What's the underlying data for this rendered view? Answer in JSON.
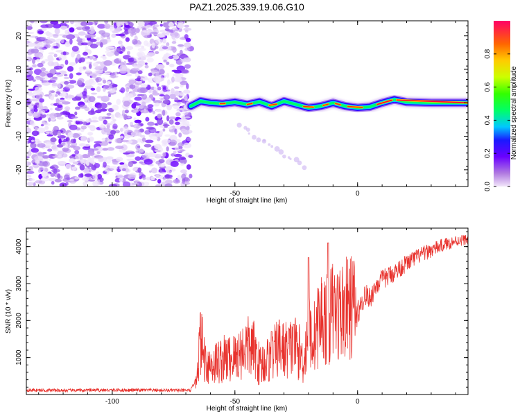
{
  "title": "PAZ1.2025.339.19.06.G10",
  "chart_data": [
    {
      "type": "heatmap",
      "name": "spectrogram",
      "xlabel": "Height of straight line (km)",
      "ylabel": "Frequency (Hz)",
      "xlim": [
        -135,
        45
      ],
      "ylim": [
        -25,
        24.5
      ],
      "xticks": [
        -100,
        -50,
        0
      ],
      "yticks": [
        -20,
        -10,
        0,
        10,
        20
      ],
      "noise_region_x": [
        -135,
        -68
      ],
      "signal_track": {
        "x": [
          -68,
          -64,
          -60,
          -55,
          -50,
          -45,
          -40,
          -35,
          -30,
          -25,
          -20,
          -15,
          -10,
          -5,
          0,
          5,
          10,
          15,
          20,
          30,
          45
        ],
        "y": [
          -1,
          0.5,
          0,
          -0.3,
          0.2,
          -0.5,
          0.3,
          -1.0,
          0.5,
          -0.5,
          -1.5,
          -1.0,
          0,
          -1.0,
          -1.5,
          -1.2,
          0,
          1.0,
          0.2,
          0,
          0
        ]
      },
      "faint_streak": {
        "x": [
          -48,
          -22
        ],
        "y": [
          -7,
          -19
        ]
      }
    },
    {
      "type": "colorbar",
      "label": "Normalized spectral amplitude",
      "range": [
        0.0,
        1.0
      ],
      "ticks": [
        0.0,
        0.2,
        0.4,
        0.6,
        0.8
      ],
      "tick_labels": [
        "0.0",
        "0.2",
        "0.4",
        "0.6",
        "0.8"
      ]
    },
    {
      "type": "line",
      "name": "snr",
      "xlabel": "Height of straight line (km)",
      "ylabel": "SNR (10 * v/v)",
      "xlim": [
        -135,
        45
      ],
      "ylim": [
        0,
        4500
      ],
      "xticks": [
        -100,
        -50,
        0
      ],
      "yticks": [
        1000,
        2000,
        3000,
        4000
      ],
      "color": "#e8322d",
      "series": [
        {
          "name": "SNR",
          "x": [
            -135,
            -120,
            -100,
            -80,
            -68,
            -66,
            -64,
            -62,
            -60,
            -55,
            -50,
            -45,
            -42,
            -40,
            -35,
            -32,
            -30,
            -25,
            -22,
            -20,
            -18,
            -15,
            -12,
            -10,
            -8,
            -5,
            -2,
            0,
            3,
            5,
            8,
            10,
            15,
            20,
            25,
            30,
            35,
            40,
            45
          ],
          "y": [
            120,
            110,
            120,
            115,
            110,
            400,
            1500,
            900,
            800,
            950,
            1000,
            1300,
            1200,
            800,
            1000,
            1300,
            1200,
            1300,
            900,
            1700,
            1500,
            2100,
            2000,
            2300,
            2200,
            2300,
            2400,
            2200,
            2700,
            2600,
            3000,
            3100,
            3300,
            3550,
            3750,
            3900,
            4050,
            4150,
            4200
          ]
        }
      ],
      "spikes": [
        {
          "x": -35,
          "y": 1700
        },
        {
          "x": -26,
          "y": 1900
        },
        {
          "x": -20,
          "y": 3700
        },
        {
          "x": -12,
          "y": 4100
        }
      ]
    }
  ]
}
